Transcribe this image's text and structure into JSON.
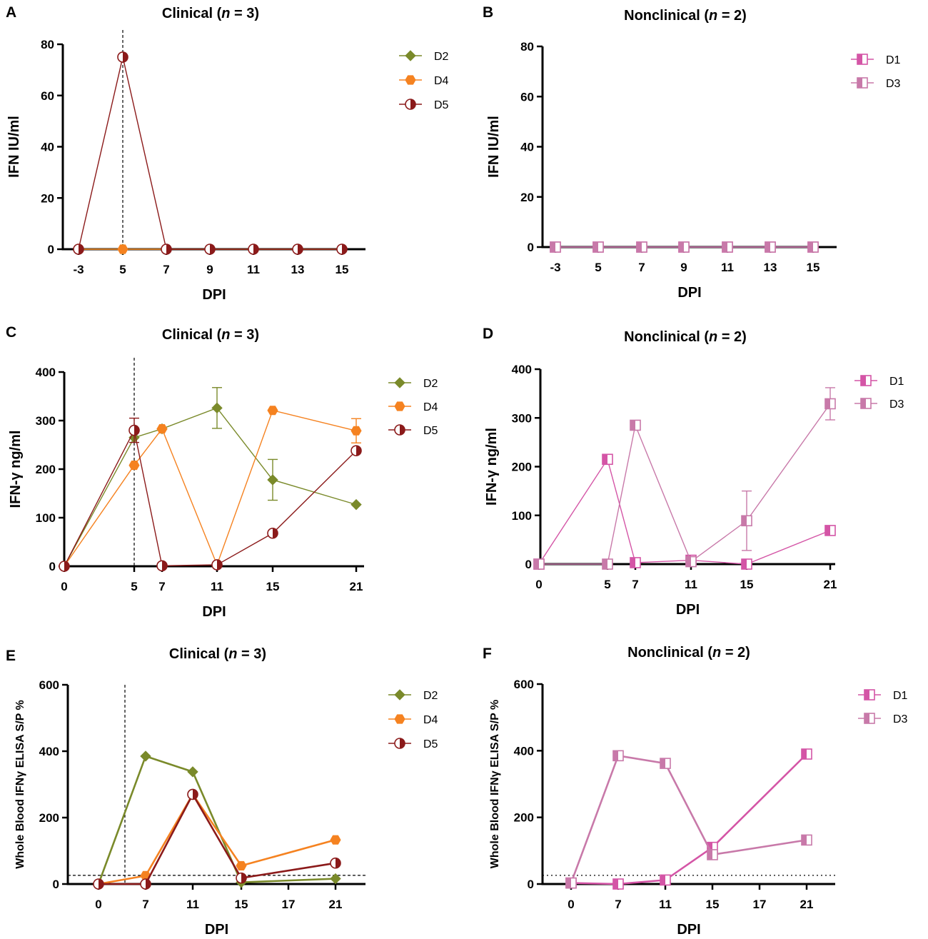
{
  "chart_data": [
    {
      "panel": "A",
      "type": "line",
      "title": "Clinical (n = 3)",
      "title_prefix": "Clinical (",
      "title_n": "n",
      "title_suffix": " = 3)",
      "xlabel": "DPI",
      "ylabel": "IFN IU/ml",
      "x_ticks": [
        "-3",
        "5",
        "7",
        "9",
        "11",
        "13",
        "15"
      ],
      "y_ticks": [
        0,
        20,
        40,
        60,
        80
      ],
      "ylim": [
        0,
        80
      ],
      "threshold": null,
      "vline_at_tick": "5",
      "series": [
        {
          "name": "D2",
          "color": "#7a8a2a",
          "marker": "diamond",
          "x": [
            "-3",
            "5",
            "7",
            "9",
            "11",
            "13",
            "15"
          ],
          "values": [
            0,
            0,
            0,
            0,
            0,
            0,
            0
          ]
        },
        {
          "name": "D4",
          "color": "#f58220",
          "marker": "hexagon",
          "x": [
            "-3",
            "5",
            "7",
            "9",
            "11",
            "13",
            "15"
          ],
          "values": [
            0,
            0,
            0,
            0,
            0,
            0,
            0
          ]
        },
        {
          "name": "D5",
          "color": "#8b1a1a",
          "marker": "half-circle",
          "x": [
            "-3",
            "5",
            "7",
            "9",
            "11",
            "13",
            "15"
          ],
          "values": [
            0,
            75,
            0,
            0,
            0,
            0,
            0
          ]
        }
      ]
    },
    {
      "panel": "B",
      "type": "line",
      "title": "Nonclinical (n = 2)",
      "title_prefix": "Nonclinical (",
      "title_n": "n",
      "title_suffix": " = 2)",
      "xlabel": "DPI",
      "ylabel": "IFN IU/ml",
      "x_ticks": [
        "-3",
        "5",
        "7",
        "9",
        "11",
        "13",
        "15"
      ],
      "y_ticks": [
        0,
        20,
        40,
        60,
        80
      ],
      "ylim": [
        0,
        80
      ],
      "threshold": null,
      "vline_at_tick": null,
      "series": [
        {
          "name": "D1",
          "color": "#d455a6",
          "marker": "half-square",
          "x": [
            "-3",
            "5",
            "7",
            "9",
            "11",
            "13",
            "15"
          ],
          "values": [
            0,
            0,
            0,
            0,
            0,
            0,
            0
          ]
        },
        {
          "name": "D3",
          "color": "#c879a9",
          "marker": "half-square",
          "x": [
            "-3",
            "5",
            "7",
            "9",
            "11",
            "13",
            "15"
          ],
          "values": [
            0,
            0,
            0,
            0,
            0,
            0,
            0
          ]
        }
      ]
    },
    {
      "panel": "C",
      "type": "line",
      "title": "Clinical (n = 3)",
      "title_prefix": "Clinical (",
      "title_n": "n",
      "title_suffix": " = 3)",
      "xlabel": "DPI",
      "ylabel": "IFN-γ ng/ml",
      "x_ticks": [
        "0",
        "5",
        "7",
        "11",
        "15",
        "21"
      ],
      "y_ticks": [
        0,
        100,
        200,
        300,
        400
      ],
      "ylim": [
        0,
        400
      ],
      "threshold": null,
      "vline_at_tick": "5",
      "series": [
        {
          "name": "D2",
          "color": "#7a8a2a",
          "marker": "diamond",
          "x": [
            "0",
            "5",
            "7",
            "11",
            "15",
            "21"
          ],
          "values": [
            0,
            265,
            283,
            326,
            178,
            127
          ],
          "errors": [
            0,
            0,
            0,
            42,
            42,
            0
          ]
        },
        {
          "name": "D4",
          "color": "#f58220",
          "marker": "hexagon",
          "x": [
            "0",
            "5",
            "7",
            "11",
            "15",
            "21"
          ],
          "values": [
            0,
            208,
            283,
            3,
            321,
            279
          ],
          "errors": [
            0,
            0,
            0,
            0,
            0,
            25
          ]
        },
        {
          "name": "D5",
          "color": "#8b1a1a",
          "marker": "half-circle",
          "x": [
            "0",
            "5",
            "7",
            "11",
            "15",
            "21"
          ],
          "values": [
            0,
            280,
            1,
            3,
            68,
            238
          ],
          "errors": [
            0,
            25,
            0,
            0,
            0,
            0
          ]
        }
      ]
    },
    {
      "panel": "D",
      "type": "line",
      "title": "Nonclinical (n = 2)",
      "title_prefix": "Nonclinical (",
      "title_n": "n",
      "title_suffix": " = 2)",
      "xlabel": "DPI",
      "ylabel": "IFN-γ ng/ml",
      "x_ticks": [
        "0",
        "5",
        "7",
        "11",
        "15",
        "21"
      ],
      "y_ticks": [
        0,
        100,
        200,
        300,
        400
      ],
      "ylim": [
        0,
        400
      ],
      "threshold": null,
      "vline_at_tick": null,
      "series": [
        {
          "name": "D1",
          "color": "#d455a6",
          "marker": "half-square",
          "x": [
            "0",
            "5",
            "7",
            "11",
            "15",
            "21"
          ],
          "values": [
            0,
            215,
            3,
            8,
            0,
            69
          ],
          "errors": [
            0,
            0,
            0,
            0,
            0,
            0
          ]
        },
        {
          "name": "D3",
          "color": "#c879a9",
          "marker": "half-square",
          "x": [
            "0",
            "5",
            "7",
            "11",
            "15",
            "21"
          ],
          "values": [
            0,
            0,
            285,
            5,
            89,
            329
          ],
          "errors": [
            0,
            0,
            0,
            0,
            61,
            33
          ]
        }
      ]
    },
    {
      "panel": "E",
      "type": "line",
      "title": "Clinical (n = 3)",
      "title_prefix": "Clinical (",
      "title_n": "n",
      "title_suffix": " = 3)",
      "xlabel": "DPI",
      "ylabel": "Whole Blood IFNγ ELISA S/P %",
      "x_ticks": [
        "0",
        "7",
        "11",
        "15",
        "17",
        "21"
      ],
      "y_ticks": [
        0,
        200,
        400,
        600
      ],
      "ylim": [
        0,
        600
      ],
      "threshold": 26,
      "vline_x": 4,
      "series": [
        {
          "name": "D2",
          "color": "#7a8a2a",
          "marker": "diamond",
          "x": [
            "0",
            "7",
            "11",
            "15",
            "21"
          ],
          "values": [
            0,
            385,
            338,
            5,
            16
          ]
        },
        {
          "name": "D4",
          "color": "#f58220",
          "marker": "hexagon",
          "x": [
            "0",
            "7",
            "11",
            "15",
            "21"
          ],
          "values": [
            0,
            25,
            270,
            55,
            133
          ]
        },
        {
          "name": "D5",
          "color": "#8b1a1a",
          "marker": "half-circle",
          "x": [
            "0",
            "7",
            "11",
            "15",
            "21"
          ],
          "values": [
            0,
            0,
            270,
            18,
            63
          ]
        }
      ]
    },
    {
      "panel": "F",
      "type": "line",
      "title": "Nonclinical (n = 2)",
      "title_prefix": "Nonclinical (",
      "title_n": "n",
      "title_suffix": " = 2)",
      "xlabel": "DPI",
      "ylabel": "Whole Blood IFNγ ELISA S/P %",
      "x_ticks": [
        "0",
        "7",
        "11",
        "15",
        "17",
        "21"
      ],
      "y_ticks": [
        0,
        200,
        400,
        600
      ],
      "ylim": [
        0,
        600
      ],
      "threshold": 26,
      "vline_x": null,
      "series": [
        {
          "name": "D1",
          "color": "#d455a6",
          "marker": "half-square",
          "x": [
            "0",
            "7",
            "11",
            "15",
            "21"
          ],
          "values": [
            3,
            0,
            12,
            110,
            390
          ]
        },
        {
          "name": "D3",
          "color": "#c879a9",
          "marker": "half-square",
          "x": [
            "0",
            "7",
            "11",
            "15",
            "21"
          ],
          "values": [
            3,
            385,
            362,
            88,
            132
          ]
        }
      ]
    }
  ]
}
